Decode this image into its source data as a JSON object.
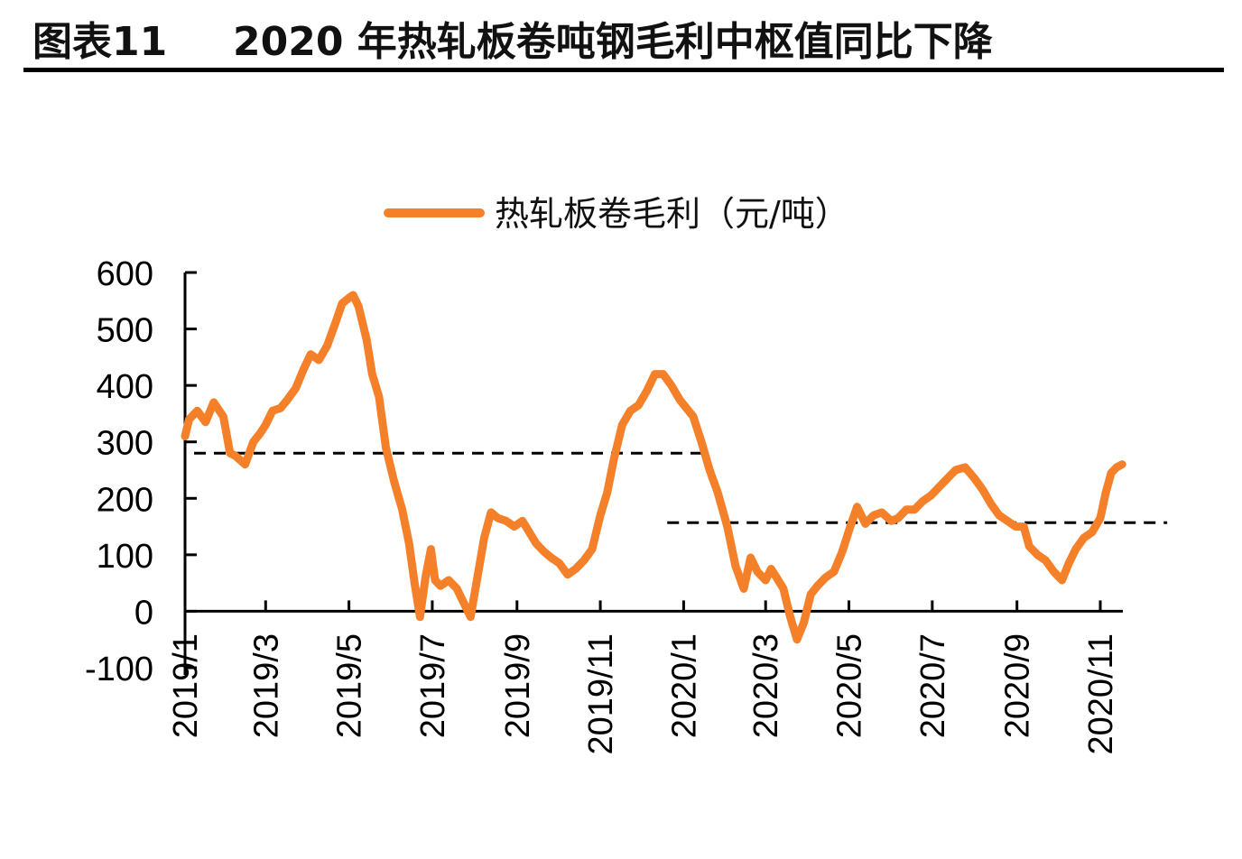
{
  "header": {
    "figure_label": "图表11",
    "title": "2020 年热轧板卷吨钢毛利中枢值同比下降"
  },
  "chart_data": {
    "type": "line",
    "title": "2020 年热轧板卷吨钢毛利中枢值同比下降",
    "xlabel": "",
    "ylabel": "",
    "ylim": [
      -100,
      600
    ],
    "yticks": [
      "600",
      "500",
      "400",
      "300",
      "200",
      "100",
      "0",
      "-100"
    ],
    "ytick_values": [
      600,
      500,
      400,
      300,
      200,
      100,
      0,
      -100
    ],
    "xticks": [
      "2019/1",
      "2019/3",
      "2019/5",
      "2019/7",
      "2019/9",
      "2019/11",
      "2020/1",
      "2020/3",
      "2020/5",
      "2020/7",
      "2020/9",
      "2020/11"
    ],
    "xtick_dates": [
      "2019-01-01",
      "2019-03-01",
      "2019-05-01",
      "2019-07-01",
      "2019-09-01",
      "2019-11-01",
      "2020-01-01",
      "2020-03-01",
      "2020-05-01",
      "2020-07-01",
      "2020-09-01",
      "2020-11-01"
    ],
    "legend_position": "top",
    "grid": false,
    "colors": {
      "series": "#F5802A",
      "reference": "#000000"
    },
    "series": [
      {
        "name": "热轧板卷毛利（元/吨）",
        "x": [
          "2019-01-01",
          "2019-01-04",
          "2019-01-10",
          "2019-01-16",
          "2019-01-22",
          "2019-01-29",
          "2019-02-03",
          "2019-02-07",
          "2019-02-14",
          "2019-02-20",
          "2019-02-25",
          "2019-03-01",
          "2019-03-06",
          "2019-03-12",
          "2019-03-17",
          "2019-03-23",
          "2019-03-29",
          "2019-04-03",
          "2019-04-09",
          "2019-04-15",
          "2019-04-21",
          "2019-04-26",
          "2019-05-01",
          "2019-05-04",
          "2019-05-08",
          "2019-05-14",
          "2019-05-18",
          "2019-05-23",
          "2019-05-28",
          "2019-06-03",
          "2019-06-09",
          "2019-06-14",
          "2019-06-18",
          "2019-06-22",
          "2019-06-26",
          "2019-06-30",
          "2019-07-03",
          "2019-07-07",
          "2019-07-13",
          "2019-07-19",
          "2019-07-23",
          "2019-07-29",
          "2019-08-03",
          "2019-08-08",
          "2019-08-13",
          "2019-08-18",
          "2019-08-24",
          "2019-08-30",
          "2019-09-05",
          "2019-09-10",
          "2019-09-15",
          "2019-09-21",
          "2019-09-26",
          "2019-10-02",
          "2019-10-08",
          "2019-10-14",
          "2019-10-20",
          "2019-10-26",
          "2019-11-01",
          "2019-11-06",
          "2019-11-11",
          "2019-11-17",
          "2019-11-23",
          "2019-11-29",
          "2019-12-05",
          "2019-12-11",
          "2019-12-17",
          "2019-12-23",
          "2019-12-29",
          "2020-01-03",
          "2020-01-08",
          "2020-01-14",
          "2020-01-20",
          "2020-01-26",
          "2020-02-02",
          "2020-02-08",
          "2020-02-14",
          "2020-02-19",
          "2020-02-24",
          "2020-03-01",
          "2020-03-05",
          "2020-03-09",
          "2020-03-14",
          "2020-03-19",
          "2020-03-24",
          "2020-03-29",
          "2020-04-03",
          "2020-04-08",
          "2020-04-14",
          "2020-04-20",
          "2020-04-26",
          "2020-05-02",
          "2020-05-07",
          "2020-05-13",
          "2020-05-19",
          "2020-05-25",
          "2020-06-01",
          "2020-06-06",
          "2020-06-12",
          "2020-06-18",
          "2020-06-24",
          "2020-06-30",
          "2020-07-06",
          "2020-07-12",
          "2020-07-18",
          "2020-07-25",
          "2020-08-01",
          "2020-08-07",
          "2020-08-13",
          "2020-08-19",
          "2020-08-25",
          "2020-08-31",
          "2020-09-06",
          "2020-09-10",
          "2020-09-16",
          "2020-09-22",
          "2020-09-28",
          "2020-10-04",
          "2020-10-09",
          "2020-10-14",
          "2020-10-20",
          "2020-10-26",
          "2020-11-01",
          "2020-11-05",
          "2020-11-09",
          "2020-11-13",
          "2020-11-17"
        ],
        "values": [
          310,
          340,
          355,
          335,
          370,
          345,
          280,
          275,
          260,
          300,
          315,
          330,
          355,
          360,
          375,
          395,
          430,
          455,
          445,
          470,
          510,
          545,
          555,
          560,
          540,
          480,
          420,
          380,
          290,
          230,
          180,
          120,
          50,
          -10,
          60,
          110,
          55,
          45,
          55,
          40,
          20,
          -10,
          60,
          130,
          175,
          165,
          160,
          150,
          160,
          140,
          120,
          105,
          95,
          85,
          65,
          75,
          90,
          110,
          170,
          210,
          270,
          330,
          355,
          365,
          390,
          420,
          420,
          400,
          375,
          360,
          345,
          300,
          250,
          210,
          150,
          80,
          40,
          95,
          70,
          55,
          75,
          60,
          40,
          -10,
          -50,
          -20,
          30,
          45,
          60,
          70,
          105,
          150,
          185,
          155,
          170,
          175,
          160,
          165,
          180,
          180,
          195,
          205,
          220,
          235,
          250,
          255,
          235,
          215,
          190,
          170,
          160,
          150,
          150,
          115,
          100,
          90,
          70,
          55,
          85,
          110,
          130,
          140,
          165,
          210,
          245,
          255,
          260
        ]
      }
    ],
    "reference_lines": [
      {
        "y": 280,
        "from": "2019-01-01",
        "to": "2020-01-15"
      },
      {
        "y": 157,
        "from": "2019-12-20",
        "to": "2020-12-20"
      }
    ]
  }
}
